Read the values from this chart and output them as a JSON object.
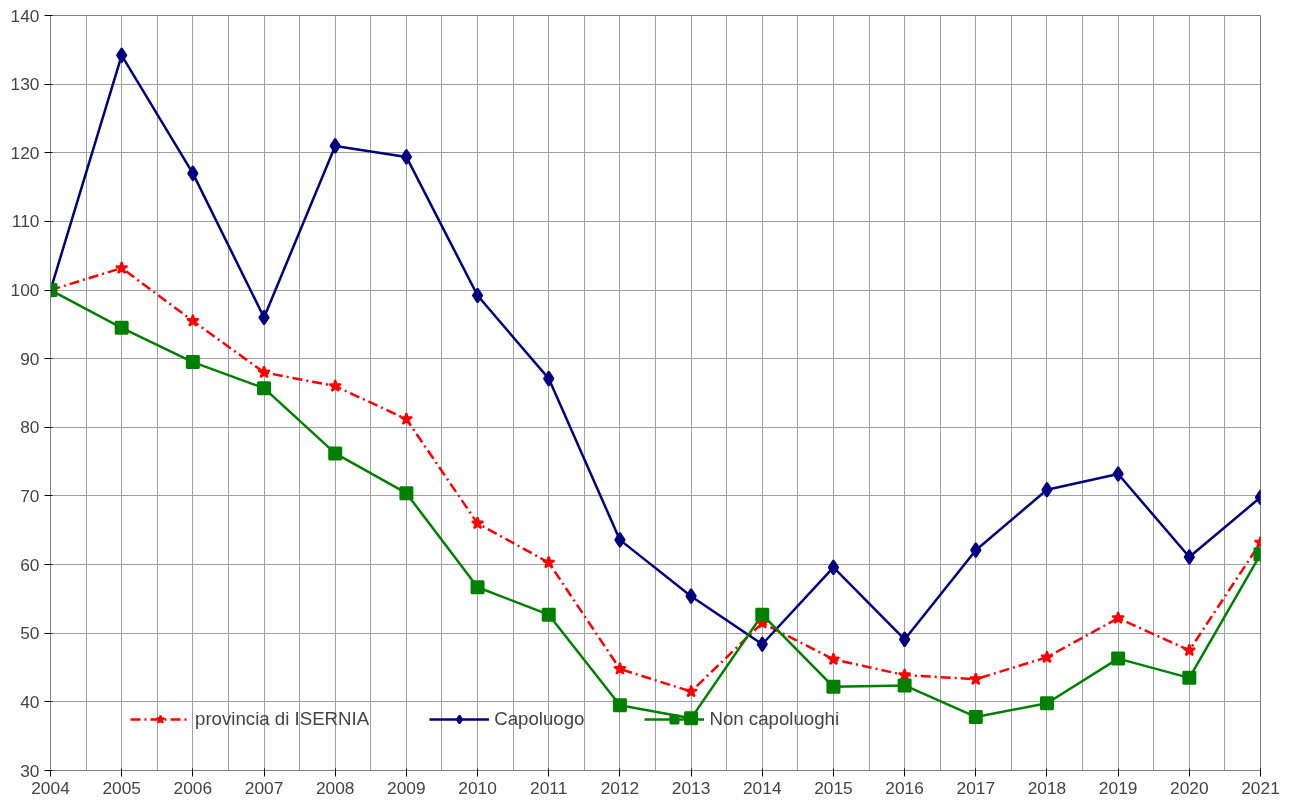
{
  "chart_data": {
    "type": "line",
    "x": [
      2004,
      2005,
      2006,
      2007,
      2008,
      2009,
      2010,
      2011,
      2012,
      2013,
      2014,
      2015,
      2016,
      2017,
      2018,
      2019,
      2020,
      2021
    ],
    "series": [
      {
        "name": "provincia di ISERNIA",
        "color": "#ff0000",
        "marker": "star",
        "line_style": "dashed",
        "values": [
          100,
          103.2,
          95.5,
          88,
          86,
          81.2,
          66,
          60.3,
          44.8,
          41.5,
          51.5,
          46.2,
          43.9,
          43.3,
          46.5,
          52.2,
          47.5,
          63.2
        ]
      },
      {
        "name": "Capoluogo",
        "color": "#000080",
        "marker": "diamond",
        "line_style": "solid",
        "values": [
          100,
          134.2,
          117,
          96,
          121,
          119.4,
          99.2,
          87.1,
          63.6,
          55.4,
          48.4,
          59.6,
          49.1,
          62.1,
          70.9,
          73.2,
          61.1,
          69.8
        ]
      },
      {
        "name": "Non capoluoghi",
        "color": "#008000",
        "marker": "square",
        "line_style": "solid",
        "values": [
          100,
          94.5,
          89.5,
          85.7,
          76.2,
          70.4,
          56.7,
          52.7,
          39.5,
          37.6,
          52.7,
          42.2,
          42.4,
          37.8,
          39.8,
          46.3,
          43.5,
          61.5
        ]
      }
    ],
    "xlim": [
      2004,
      2021
    ],
    "xticks": [
      2004,
      2005,
      2006,
      2007,
      2008,
      2009,
      2010,
      2011,
      2012,
      2013,
      2014,
      2015,
      2016,
      2017,
      2018,
      2019,
      2020,
      2021
    ],
    "ylim": [
      30,
      140
    ],
    "yticks": [
      30,
      40,
      50,
      60,
      70,
      80,
      90,
      100,
      110,
      120,
      130,
      140
    ],
    "grid": true,
    "legend": "bottom"
  }
}
